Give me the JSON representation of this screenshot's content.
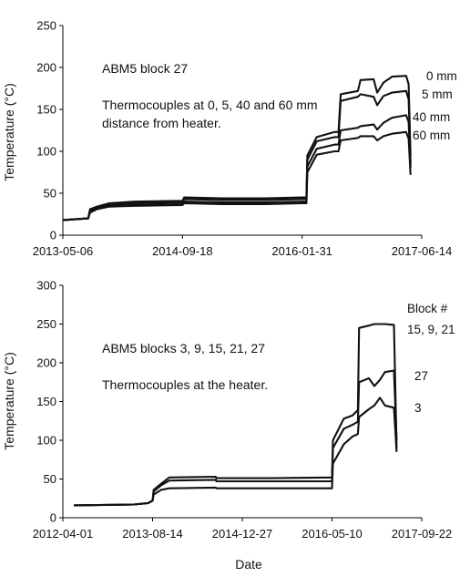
{
  "figure": {
    "xlabel_shared": "Date"
  },
  "chart_data": [
    {
      "type": "line",
      "title": "",
      "xlabel": "",
      "ylabel": "Temperature (°C)",
      "x_type": "date",
      "xlim": [
        "2013-05-06",
        "2017-06-14"
      ],
      "ylim": [
        0,
        250
      ],
      "yticks": [
        0,
        50,
        100,
        150,
        200,
        250
      ],
      "xticks": [
        "2013-05-06",
        "2014-09-18",
        "2016-01-31",
        "2017-06-14"
      ],
      "grid": false,
      "annotations": [
        "ABM5 block 27",
        "Thermocouples at 0, 5, 40 and 60 mm",
        "distance from heater."
      ],
      "series": [
        {
          "name": "0 mm",
          "points": [
            [
              "2013-05-06",
              18
            ],
            [
              "2013-08-20",
              20
            ],
            [
              "2013-08-28",
              31
            ],
            [
              "2013-09-25",
              34
            ],
            [
              "2013-11-15",
              38
            ],
            [
              "2014-03-01",
              40
            ],
            [
              "2014-09-18",
              41
            ],
            [
              "2014-09-25",
              45
            ],
            [
              "2015-03-01",
              44
            ],
            [
              "2015-09-01",
              44
            ],
            [
              "2016-01-31",
              45
            ],
            [
              "2016-02-18",
              45
            ],
            [
              "2016-02-22",
              95
            ],
            [
              "2016-04-01",
              117
            ],
            [
              "2016-06-15",
              123
            ],
            [
              "2016-07-01",
              123
            ],
            [
              "2016-07-10",
              168
            ],
            [
              "2016-09-20",
              172
            ],
            [
              "2016-10-01",
              185
            ],
            [
              "2016-11-25",
              186
            ],
            [
              "2016-12-10",
              170
            ],
            [
              "2017-01-05",
              182
            ],
            [
              "2017-02-10",
              189
            ],
            [
              "2017-04-10",
              190
            ],
            [
              "2017-04-20",
              180
            ],
            [
              "2017-04-28",
              95
            ]
          ]
        },
        {
          "name": "5 mm",
          "points": [
            [
              "2013-05-06",
              18
            ],
            [
              "2013-08-20",
              20
            ],
            [
              "2013-08-28",
              30
            ],
            [
              "2013-09-25",
              33
            ],
            [
              "2013-11-15",
              37
            ],
            [
              "2014-03-01",
              38
            ],
            [
              "2014-09-18",
              39
            ],
            [
              "2014-09-25",
              43
            ],
            [
              "2015-03-01",
              42
            ],
            [
              "2015-09-01",
              42
            ],
            [
              "2016-01-31",
              43
            ],
            [
              "2016-02-18",
              43
            ],
            [
              "2016-02-22",
              90
            ],
            [
              "2016-04-01",
              112
            ],
            [
              "2016-06-15",
              117
            ],
            [
              "2016-07-01",
              117
            ],
            [
              "2016-07-10",
              160
            ],
            [
              "2016-09-20",
              165
            ],
            [
              "2016-10-01",
              168
            ],
            [
              "2016-11-25",
              165
            ],
            [
              "2016-12-10",
              155
            ],
            [
              "2017-01-05",
              166
            ],
            [
              "2017-02-10",
              170
            ],
            [
              "2017-04-10",
              172
            ],
            [
              "2017-04-20",
              162
            ],
            [
              "2017-04-28",
              85
            ]
          ]
        },
        {
          "name": "40 mm",
          "points": [
            [
              "2013-05-06",
              18
            ],
            [
              "2013-08-20",
              20
            ],
            [
              "2013-08-28",
              28
            ],
            [
              "2013-09-25",
              32
            ],
            [
              "2013-11-15",
              35
            ],
            [
              "2014-03-01",
              36
            ],
            [
              "2014-09-18",
              37
            ],
            [
              "2014-09-25",
              40
            ],
            [
              "2015-03-01",
              39
            ],
            [
              "2015-09-01",
              39
            ],
            [
              "2016-01-31",
              40
            ],
            [
              "2016-02-18",
              40
            ],
            [
              "2016-02-22",
              82
            ],
            [
              "2016-04-01",
              103
            ],
            [
              "2016-06-15",
              108
            ],
            [
              "2016-07-01",
              108
            ],
            [
              "2016-07-10",
              125
            ],
            [
              "2016-09-20",
              128
            ],
            [
              "2016-10-01",
              130
            ],
            [
              "2016-11-25",
              132
            ],
            [
              "2016-12-10",
              126
            ],
            [
              "2017-01-05",
              134
            ],
            [
              "2017-02-10",
              140
            ],
            [
              "2017-04-10",
              143
            ],
            [
              "2017-04-20",
              135
            ],
            [
              "2017-04-28",
              80
            ]
          ]
        },
        {
          "name": "60 mm",
          "points": [
            [
              "2013-05-06",
              18
            ],
            [
              "2013-08-20",
              20
            ],
            [
              "2013-08-28",
              27
            ],
            [
              "2013-09-25",
              31
            ],
            [
              "2013-11-15",
              34
            ],
            [
              "2014-03-01",
              35
            ],
            [
              "2014-09-18",
              36
            ],
            [
              "2014-09-25",
              38
            ],
            [
              "2015-03-01",
              37
            ],
            [
              "2015-09-01",
              37
            ],
            [
              "2016-01-31",
              38
            ],
            [
              "2016-02-18",
              38
            ],
            [
              "2016-02-22",
              75
            ],
            [
              "2016-04-01",
              96
            ],
            [
              "2016-06-15",
              100
            ],
            [
              "2016-07-01",
              100
            ],
            [
              "2016-07-10",
              113
            ],
            [
              "2016-09-20",
              116
            ],
            [
              "2016-10-01",
              118
            ],
            [
              "2016-11-25",
              118
            ],
            [
              "2016-12-10",
              113
            ],
            [
              "2017-01-05",
              118
            ],
            [
              "2017-02-10",
              121
            ],
            [
              "2017-04-10",
              123
            ],
            [
              "2017-04-20",
              115
            ],
            [
              "2017-04-28",
              72
            ]
          ]
        }
      ]
    },
    {
      "type": "line",
      "title": "",
      "xlabel": "Date",
      "ylabel": "Temperature (°C)",
      "x_type": "date",
      "xlim": [
        "2012-04-01",
        "2017-09-22"
      ],
      "ylim": [
        0,
        300
      ],
      "yticks": [
        0,
        50,
        100,
        150,
        200,
        250,
        300
      ],
      "xticks": [
        "2012-04-01",
        "2013-08-14",
        "2014-12-27",
        "2016-05-10",
        "2017-09-22"
      ],
      "grid": false,
      "annotations": [
        "ABM5 blocks 3, 9, 15, 21, 27",
        "Thermocouples at the heater."
      ],
      "legend_title": "Block #",
      "series": [
        {
          "name": "15, 9, 21",
          "points": [
            [
              "2012-06-01",
              16
            ],
            [
              "2013-05-01",
              17
            ],
            [
              "2013-07-20",
              19
            ],
            [
              "2013-08-14",
              22
            ],
            [
              "2013-08-20",
              36
            ],
            [
              "2013-10-01",
              44
            ],
            [
              "2013-11-15",
              52
            ],
            [
              "2014-08-01",
              53
            ],
            [
              "2014-08-05",
              51
            ],
            [
              "2015-06-01",
              51
            ],
            [
              "2016-05-10",
              52
            ],
            [
              "2016-05-15",
              100
            ],
            [
              "2016-07-15",
              128
            ],
            [
              "2016-09-01",
              132
            ],
            [
              "2016-10-01",
              139
            ],
            [
              "2016-10-08",
              245
            ],
            [
              "2016-12-01",
              248
            ],
            [
              "2017-01-01",
              250
            ],
            [
              "2017-03-01",
              250
            ],
            [
              "2017-04-20",
              249
            ],
            [
              "2017-05-05",
              90
            ]
          ]
        },
        {
          "name": "27",
          "points": [
            [
              "2012-06-01",
              16
            ],
            [
              "2013-05-01",
              17
            ],
            [
              "2013-07-20",
              19
            ],
            [
              "2013-08-14",
              22
            ],
            [
              "2013-08-20",
              34
            ],
            [
              "2013-10-01",
              42
            ],
            [
              "2013-11-15",
              48
            ],
            [
              "2014-08-01",
              49
            ],
            [
              "2014-08-05",
              47
            ],
            [
              "2015-06-01",
              47
            ],
            [
              "2016-05-10",
              47
            ],
            [
              "2016-05-15",
              90
            ],
            [
              "2016-07-15",
              115
            ],
            [
              "2016-09-01",
              120
            ],
            [
              "2016-10-01",
              124
            ],
            [
              "2016-10-08",
              175
            ],
            [
              "2016-12-01",
              180
            ],
            [
              "2017-01-01",
              170
            ],
            [
              "2017-02-01",
              178
            ],
            [
              "2017-03-01",
              188
            ],
            [
              "2017-04-20",
              190
            ],
            [
              "2017-05-05",
              100
            ]
          ]
        },
        {
          "name": "3",
          "points": [
            [
              "2012-06-01",
              16
            ],
            [
              "2013-05-01",
              17
            ],
            [
              "2013-07-20",
              19
            ],
            [
              "2013-08-14",
              22
            ],
            [
              "2013-08-20",
              30
            ],
            [
              "2013-10-01",
              36
            ],
            [
              "2013-11-15",
              38
            ],
            [
              "2014-08-01",
              39
            ],
            [
              "2014-08-05",
              38
            ],
            [
              "2015-06-01",
              38
            ],
            [
              "2016-05-10",
              38
            ],
            [
              "2016-05-15",
              70
            ],
            [
              "2016-07-15",
              95
            ],
            [
              "2016-09-01",
              105
            ],
            [
              "2016-10-01",
              108
            ],
            [
              "2016-10-08",
              130
            ],
            [
              "2016-12-01",
              140
            ],
            [
              "2017-01-01",
              145
            ],
            [
              "2017-02-01",
              155
            ],
            [
              "2017-03-01",
              145
            ],
            [
              "2017-04-20",
              142
            ],
            [
              "2017-05-05",
              85
            ]
          ]
        }
      ]
    }
  ]
}
